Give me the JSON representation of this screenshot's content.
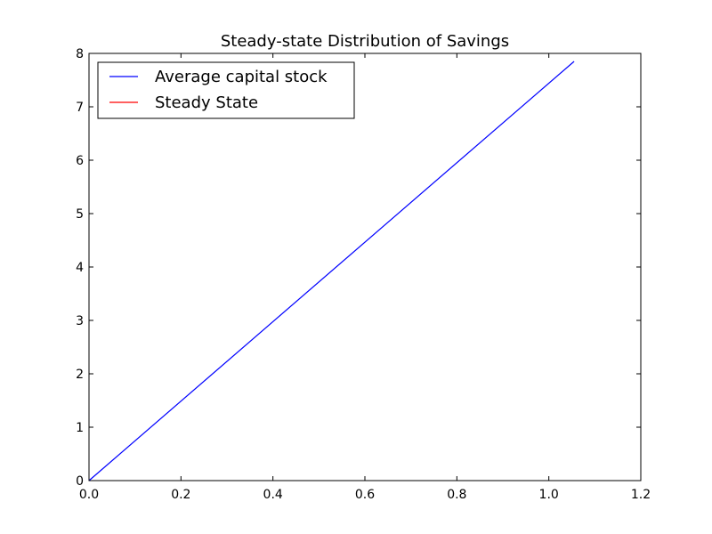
{
  "chart_data": {
    "type": "line",
    "title": "Steady-state Distribution of Savings",
    "xlabel": "",
    "ylabel": "",
    "xlim": [
      0.0,
      1.2
    ],
    "ylim": [
      0,
      8
    ],
    "x_ticks": [
      "0.0",
      "0.2",
      "0.4",
      "0.6",
      "0.8",
      "1.0",
      "1.2"
    ],
    "y_ticks": [
      "0",
      "1",
      "2",
      "3",
      "4",
      "5",
      "6",
      "7",
      "8"
    ],
    "grid": false,
    "legend_position": "top-left",
    "series": [
      {
        "name": "Average capital stock",
        "color": "#0000ff",
        "x": [
          0.0,
          1.055
        ],
        "y": [
          0.0,
          7.85
        ]
      },
      {
        "name": "Steady State",
        "color": "#ff0000",
        "x": [],
        "y": []
      }
    ]
  }
}
